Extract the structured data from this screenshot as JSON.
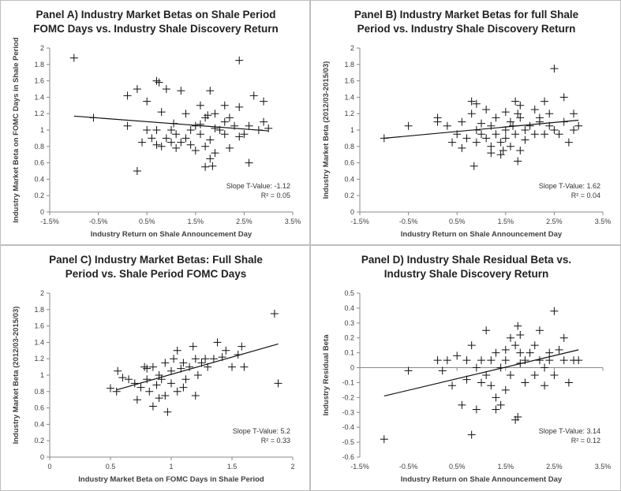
{
  "chart_data": [
    {
      "type": "scatter",
      "title_lines": [
        "Panel A) Industry Market Betas on Shale Period",
        "FOMC Days vs. Industry Shale Discovery Return"
      ],
      "xlabel": "Industry Return on Shale Announcement Day",
      "ylabel": "Industry Market Beta on FOMC Days in Shale Period",
      "xlim": [
        -0.015,
        0.035
      ],
      "ylim": [
        0,
        2
      ],
      "xticks": [
        -0.015,
        -0.005,
        0.005,
        0.015,
        0.025,
        0.035
      ],
      "xtick_labels": [
        "-1.5%",
        "-0.5%",
        "0.5%",
        "1.5%",
        "2.5%",
        "3.5%"
      ],
      "yticks": [
        0,
        0.2,
        0.4,
        0.6,
        0.8,
        1,
        1.2,
        1.4,
        1.6,
        1.8,
        2
      ],
      "ytick_labels": [
        "0",
        "0.2",
        "0.4",
        "0.6",
        "0.8",
        "1",
        "1.2",
        "1.4",
        "1.6",
        "1.8",
        "2"
      ],
      "annotation": [
        "Slope T-Value: -1.12",
        "R² = 0.05"
      ],
      "trendline": [
        [
          -0.01,
          1.17
        ],
        [
          0.03,
          0.99
        ]
      ],
      "points": [
        [
          -0.01,
          1.88
        ],
        [
          -0.006,
          1.15
        ],
        [
          0.001,
          1.42
        ],
        [
          0.001,
          1.05
        ],
        [
          0.003,
          1.5
        ],
        [
          0.004,
          0.85
        ],
        [
          0.003,
          0.5
        ],
        [
          0.005,
          1.35
        ],
        [
          0.005,
          1.0
        ],
        [
          0.006,
          0.9
        ],
        [
          0.007,
          1.0
        ],
        [
          0.007,
          0.82
        ],
        [
          0.007,
          1.6
        ],
        [
          0.0075,
          1.58
        ],
        [
          0.008,
          1.22
        ],
        [
          0.008,
          0.8
        ],
        [
          0.009,
          1.5
        ],
        [
          0.009,
          0.9
        ],
        [
          0.01,
          1.0
        ],
        [
          0.01,
          0.85
        ],
        [
          0.0105,
          1.08
        ],
        [
          0.011,
          0.78
        ],
        [
          0.011,
          0.95
        ],
        [
          0.012,
          1.48
        ],
        [
          0.012,
          0.85
        ],
        [
          0.013,
          1.2
        ],
        [
          0.013,
          0.9
        ],
        [
          0.014,
          1.0
        ],
        [
          0.014,
          0.82
        ],
        [
          0.015,
          1.05
        ],
        [
          0.015,
          0.75
        ],
        [
          0.016,
          0.95
        ],
        [
          0.016,
          1.3
        ],
        [
          0.016,
          1.07
        ],
        [
          0.017,
          0.55
        ],
        [
          0.017,
          0.8
        ],
        [
          0.017,
          1.15
        ],
        [
          0.0175,
          1.18
        ],
        [
          0.018,
          0.88
        ],
        [
          0.018,
          0.65
        ],
        [
          0.018,
          1.48
        ],
        [
          0.0185,
          0.56
        ],
        [
          0.019,
          1.2
        ],
        [
          0.019,
          1.02
        ],
        [
          0.019,
          0.72
        ],
        [
          0.02,
          1.0
        ],
        [
          0.021,
          1.3
        ],
        [
          0.021,
          1.1
        ],
        [
          0.021,
          0.95
        ],
        [
          0.022,
          0.78
        ],
        [
          0.022,
          1.15
        ],
        [
          0.023,
          1.05
        ],
        [
          0.024,
          0.92
        ],
        [
          0.024,
          1.28
        ],
        [
          0.024,
          1.85
        ],
        [
          0.025,
          0.95
        ],
        [
          0.026,
          1.05
        ],
        [
          0.026,
          0.6
        ],
        [
          0.027,
          1.42
        ],
        [
          0.028,
          1.0
        ],
        [
          0.029,
          1.1
        ],
        [
          0.029,
          1.35
        ],
        [
          0.03,
          1.02
        ]
      ]
    },
    {
      "type": "scatter",
      "title_lines": [
        "Panel B) Industry Market Betas for full Shale",
        "Period vs. Industry Shale Discovery Return"
      ],
      "xlabel": "Industry Return on Shale Announcement Day",
      "ylabel": "Industry Market Beta (2012/03-2015/03)",
      "xlim": [
        -0.015,
        0.035
      ],
      "ylim": [
        0,
        2
      ],
      "xticks": [
        -0.015,
        -0.005,
        0.005,
        0.015,
        0.025,
        0.035
      ],
      "xtick_labels": [
        "-1.5%",
        "-0.5%",
        "0.5%",
        "1.5%",
        "2.5%",
        "3.5%"
      ],
      "yticks": [
        0,
        0.2,
        0.4,
        0.6,
        0.8,
        1,
        1.2,
        1.4,
        1.6,
        1.8,
        2
      ],
      "ytick_labels": [
        "0",
        "0.2",
        "0.4",
        "0.6",
        "0.8",
        "1",
        "1.2",
        "1.4",
        "1.6",
        "1.8",
        "2"
      ],
      "annotation": [
        "Slope T-Value: 1.62",
        "R² = 0.04"
      ],
      "trendline": [
        [
          -0.01,
          0.9
        ],
        [
          0.03,
          1.12
        ]
      ],
      "points": [
        [
          -0.01,
          0.9
        ],
        [
          -0.005,
          1.05
        ],
        [
          0.001,
          1.15
        ],
        [
          0.001,
          1.1
        ],
        [
          0.003,
          1.05
        ],
        [
          0.004,
          0.85
        ],
        [
          0.005,
          0.95
        ],
        [
          0.006,
          0.78
        ],
        [
          0.006,
          1.1
        ],
        [
          0.007,
          0.9
        ],
        [
          0.008,
          1.35
        ],
        [
          0.008,
          1.2
        ],
        [
          0.0085,
          0.56
        ],
        [
          0.009,
          1.0
        ],
        [
          0.009,
          0.85
        ],
        [
          0.009,
          1.32
        ],
        [
          0.01,
          0.95
        ],
        [
          0.01,
          1.08
        ],
        [
          0.011,
          0.9
        ],
        [
          0.011,
          1.25
        ],
        [
          0.012,
          1.05
        ],
        [
          0.012,
          0.8
        ],
        [
          0.012,
          0.72
        ],
        [
          0.013,
          0.95
        ],
        [
          0.013,
          1.15
        ],
        [
          0.014,
          0.85
        ],
        [
          0.014,
          0.7
        ],
        [
          0.0145,
          0.75
        ],
        [
          0.015,
          1.0
        ],
        [
          0.015,
          0.9
        ],
        [
          0.015,
          1.22
        ],
        [
          0.016,
          0.8
        ],
        [
          0.016,
          1.1
        ],
        [
          0.0165,
          1.05
        ],
        [
          0.017,
          0.95
        ],
        [
          0.017,
          1.35
        ],
        [
          0.0175,
          1.2
        ],
        [
          0.0175,
          0.62
        ],
        [
          0.018,
          0.75
        ],
        [
          0.018,
          1.15
        ],
        [
          0.018,
          1.3
        ],
        [
          0.019,
          1.0
        ],
        [
          0.019,
          0.88
        ],
        [
          0.02,
          1.05
        ],
        [
          0.021,
          0.95
        ],
        [
          0.021,
          1.25
        ],
        [
          0.022,
          1.15
        ],
        [
          0.022,
          1.1
        ],
        [
          0.023,
          1.35
        ],
        [
          0.023,
          0.95
        ],
        [
          0.024,
          1.05
        ],
        [
          0.024,
          1.2
        ],
        [
          0.025,
          1.75
        ],
        [
          0.025,
          1.0
        ],
        [
          0.026,
          0.95
        ],
        [
          0.027,
          1.1
        ],
        [
          0.027,
          1.4
        ],
        [
          0.028,
          0.85
        ],
        [
          0.029,
          1.0
        ],
        [
          0.029,
          1.2
        ],
        [
          0.03,
          1.05
        ]
      ]
    },
    {
      "type": "scatter",
      "title_lines": [
        "Panel C) Industry Market Betas: Full Shale",
        "Period vs. Shale Period FOMC Days"
      ],
      "xlabel": "Industry Market Beta on FOMC Days in Shale Period",
      "ylabel": "Industry Market Beta (2012/03-2015/03)",
      "xlim": [
        0,
        2
      ],
      "ylim": [
        0,
        2
      ],
      "xticks": [
        0,
        0.5,
        1,
        1.5,
        2
      ],
      "xtick_labels": [
        "0",
        "0.5",
        "1",
        "1.5",
        "2"
      ],
      "yticks": [
        0,
        0.2,
        0.4,
        0.6,
        0.8,
        1,
        1.2,
        1.4,
        1.6,
        1.8,
        2
      ],
      "ytick_labels": [
        "0",
        "0.2",
        "0.4",
        "0.6",
        "0.8",
        "1",
        "1.2",
        "1.4",
        "1.6",
        "1.8",
        "2"
      ],
      "annotation": [
        "Slope T-Value: 5.2",
        "R² = 0.33"
      ],
      "trendline": [
        [
          0.55,
          0.82
        ],
        [
          1.88,
          1.38
        ]
      ],
      "points": [
        [
          0.5,
          0.84
        ],
        [
          0.55,
          0.8
        ],
        [
          0.56,
          1.05
        ],
        [
          0.6,
          0.97
        ],
        [
          0.65,
          0.95
        ],
        [
          0.7,
          0.9
        ],
        [
          0.72,
          0.7
        ],
        [
          0.75,
          0.85
        ],
        [
          0.78,
          1.1
        ],
        [
          0.8,
          1.08
        ],
        [
          0.8,
          0.95
        ],
        [
          0.82,
          0.8
        ],
        [
          0.85,
          0.62
        ],
        [
          0.85,
          1.1
        ],
        [
          0.88,
          0.88
        ],
        [
          0.9,
          0.72
        ],
        [
          0.9,
          1.0
        ],
        [
          0.92,
          0.95
        ],
        [
          0.95,
          1.15
        ],
        [
          0.95,
          0.75
        ],
        [
          0.97,
          0.55
        ],
        [
          1.0,
          1.05
        ],
        [
          1.0,
          0.9
        ],
        [
          1.02,
          1.2
        ],
        [
          1.05,
          0.8
        ],
        [
          1.05,
          1.3
        ],
        [
          1.08,
          1.08
        ],
        [
          1.1,
          0.85
        ],
        [
          1.1,
          1.15
        ],
        [
          1.12,
          0.95
        ],
        [
          1.15,
          1.1
        ],
        [
          1.18,
          1.35
        ],
        [
          1.2,
          1.2
        ],
        [
          1.2,
          0.75
        ],
        [
          1.22,
          1.0
        ],
        [
          1.25,
          1.15
        ],
        [
          1.28,
          1.2
        ],
        [
          1.3,
          1.1
        ],
        [
          1.35,
          1.2
        ],
        [
          1.38,
          1.4
        ],
        [
          1.42,
          1.22
        ],
        [
          1.45,
          1.3
        ],
        [
          1.5,
          1.1
        ],
        [
          1.55,
          1.25
        ],
        [
          1.6,
          1.1
        ],
        [
          1.58,
          1.35
        ],
        [
          1.85,
          1.75
        ],
        [
          1.88,
          0.9
        ]
      ]
    },
    {
      "type": "scatter",
      "title_lines": [
        "Panel D) Industry Shale Residual Beta vs.",
        "Industry Shale Discovery Return"
      ],
      "xlabel": "Industry Return on Shale Announcement Day",
      "ylabel": "Industry Residual Beta",
      "xlim": [
        -0.015,
        0.035
      ],
      "ylim": [
        -0.6,
        0.5
      ],
      "xticks": [
        -0.015,
        -0.005,
        0.005,
        0.015,
        0.025,
        0.035
      ],
      "xtick_labels": [
        "-1.5%",
        "-0.5%",
        "0.5%",
        "1.5%",
        "2.5%",
        "3.5%"
      ],
      "yticks": [
        -0.6,
        -0.5,
        -0.4,
        -0.3,
        -0.2,
        -0.1,
        0,
        0.1,
        0.2,
        0.3,
        0.4,
        0.5
      ],
      "ytick_labels": [
        "-0.6",
        "-0.5",
        "-0.4",
        "-0.3",
        "-0.2",
        "-0.1",
        "0",
        "0.1",
        "0.2",
        "0.3",
        "0.4",
        "0.5"
      ],
      "annotation": [
        "Slope T-Value: 3.14",
        "R² = 0.12"
      ],
      "trendline": [
        [
          -0.01,
          -0.19
        ],
        [
          0.03,
          0.12
        ]
      ],
      "points": [
        [
          -0.01,
          -0.48
        ],
        [
          -0.005,
          -0.02
        ],
        [
          0.001,
          0.05
        ],
        [
          0.002,
          -0.02
        ],
        [
          0.003,
          0.05
        ],
        [
          0.004,
          -0.12
        ],
        [
          0.005,
          0.08
        ],
        [
          0.006,
          -0.25
        ],
        [
          0.007,
          0.05
        ],
        [
          0.007,
          -0.08
        ],
        [
          0.008,
          0.15
        ],
        [
          0.008,
          -0.45
        ],
        [
          0.009,
          0.0
        ],
        [
          0.009,
          -0.28
        ],
        [
          0.01,
          0.05
        ],
        [
          0.01,
          -0.1
        ],
        [
          0.011,
          0.25
        ],
        [
          0.011,
          -0.05
        ],
        [
          0.012,
          0.05
        ],
        [
          0.012,
          -0.12
        ],
        [
          0.013,
          -0.2
        ],
        [
          0.013,
          0.1
        ],
        [
          0.013,
          -0.28
        ],
        [
          0.014,
          -0.25
        ],
        [
          0.014,
          0.0
        ],
        [
          0.015,
          0.05
        ],
        [
          0.015,
          -0.15
        ],
        [
          0.015,
          0.12
        ],
        [
          0.016,
          -0.05
        ],
        [
          0.016,
          0.2
        ],
        [
          0.017,
          0.15
        ],
        [
          0.017,
          -0.35
        ],
        [
          0.0175,
          -0.33
        ],
        [
          0.0175,
          0.28
        ],
        [
          0.018,
          0.1
        ],
        [
          0.018,
          0.03
        ],
        [
          0.018,
          0.22
        ],
        [
          0.019,
          0.05
        ],
        [
          0.019,
          -0.1
        ],
        [
          0.02,
          0.1
        ],
        [
          0.021,
          -0.05
        ],
        [
          0.021,
          0.15
        ],
        [
          0.022,
          0.05
        ],
        [
          0.022,
          0.25
        ],
        [
          0.023,
          0.0
        ],
        [
          0.023,
          -0.12
        ],
        [
          0.024,
          0.1
        ],
        [
          0.024,
          0.05
        ],
        [
          0.025,
          0.38
        ],
        [
          0.025,
          -0.05
        ],
        [
          0.026,
          0.12
        ],
        [
          0.027,
          0.2
        ],
        [
          0.027,
          0.05
        ],
        [
          0.028,
          -0.1
        ],
        [
          0.029,
          0.05
        ],
        [
          0.03,
          0.05
        ]
      ]
    }
  ]
}
